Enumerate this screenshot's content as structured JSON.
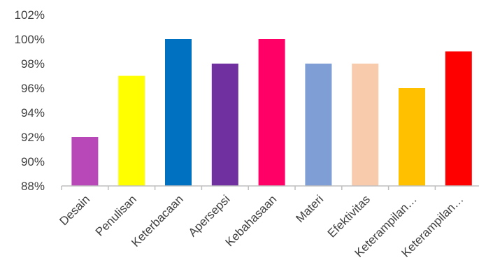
{
  "chart_data": {
    "type": "bar",
    "categories": [
      "Desain",
      "Penulisan",
      "Keterbacaan",
      "Apersepsi",
      "Kebahasaan",
      "Materi",
      "Efektivitas",
      "Keterampilan…",
      "Keterampilan…"
    ],
    "values": [
      92,
      97,
      100,
      98,
      100,
      98,
      98,
      96,
      99
    ],
    "colors": [
      "#B847B8",
      "#FFFF00",
      "#0070C0",
      "#7030A0",
      "#FF0066",
      "#7F9ED6",
      "#F8CBAD",
      "#FFC000",
      "#FF0000"
    ],
    "y_ticks": [
      "88%",
      "90%",
      "92%",
      "94%",
      "96%",
      "98%",
      "100%",
      "102%"
    ],
    "ylim": [
      88,
      102
    ],
    "grid": false,
    "legend": "none"
  }
}
